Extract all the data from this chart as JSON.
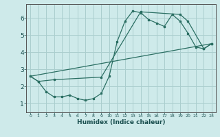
{
  "xlabel": "Humidex (Indice chaleur)",
  "background_color": "#ceeaea",
  "grid_color": "#aacece",
  "line_color": "#2a6e62",
  "xlim": [
    -0.5,
    23.5
  ],
  "ylim": [
    0.5,
    6.8
  ],
  "xticks": [
    0,
    1,
    2,
    3,
    4,
    5,
    6,
    7,
    8,
    9,
    10,
    11,
    12,
    13,
    14,
    15,
    16,
    17,
    18,
    19,
    20,
    21,
    22,
    23
  ],
  "yticks": [
    1,
    2,
    3,
    4,
    5,
    6
  ],
  "line1_x": [
    0,
    1,
    2,
    3,
    4,
    5,
    6,
    7,
    8,
    9,
    10,
    11,
    12,
    13,
    14,
    15,
    16,
    17,
    18,
    19,
    20,
    21,
    22,
    23
  ],
  "line1_y": [
    2.6,
    2.3,
    1.7,
    1.4,
    1.4,
    1.5,
    1.3,
    1.2,
    1.3,
    1.6,
    2.6,
    4.6,
    5.8,
    6.4,
    6.3,
    5.9,
    5.7,
    5.5,
    6.2,
    5.8,
    5.1,
    4.3,
    4.2,
    4.5
  ],
  "line2_x": [
    0,
    1,
    3,
    9,
    14,
    19,
    20,
    22,
    23
  ],
  "line2_y": [
    2.6,
    2.3,
    2.4,
    2.55,
    6.35,
    6.2,
    5.8,
    4.2,
    4.5
  ],
  "line3_x": [
    0,
    23
  ],
  "line3_y": [
    2.6,
    4.5
  ]
}
